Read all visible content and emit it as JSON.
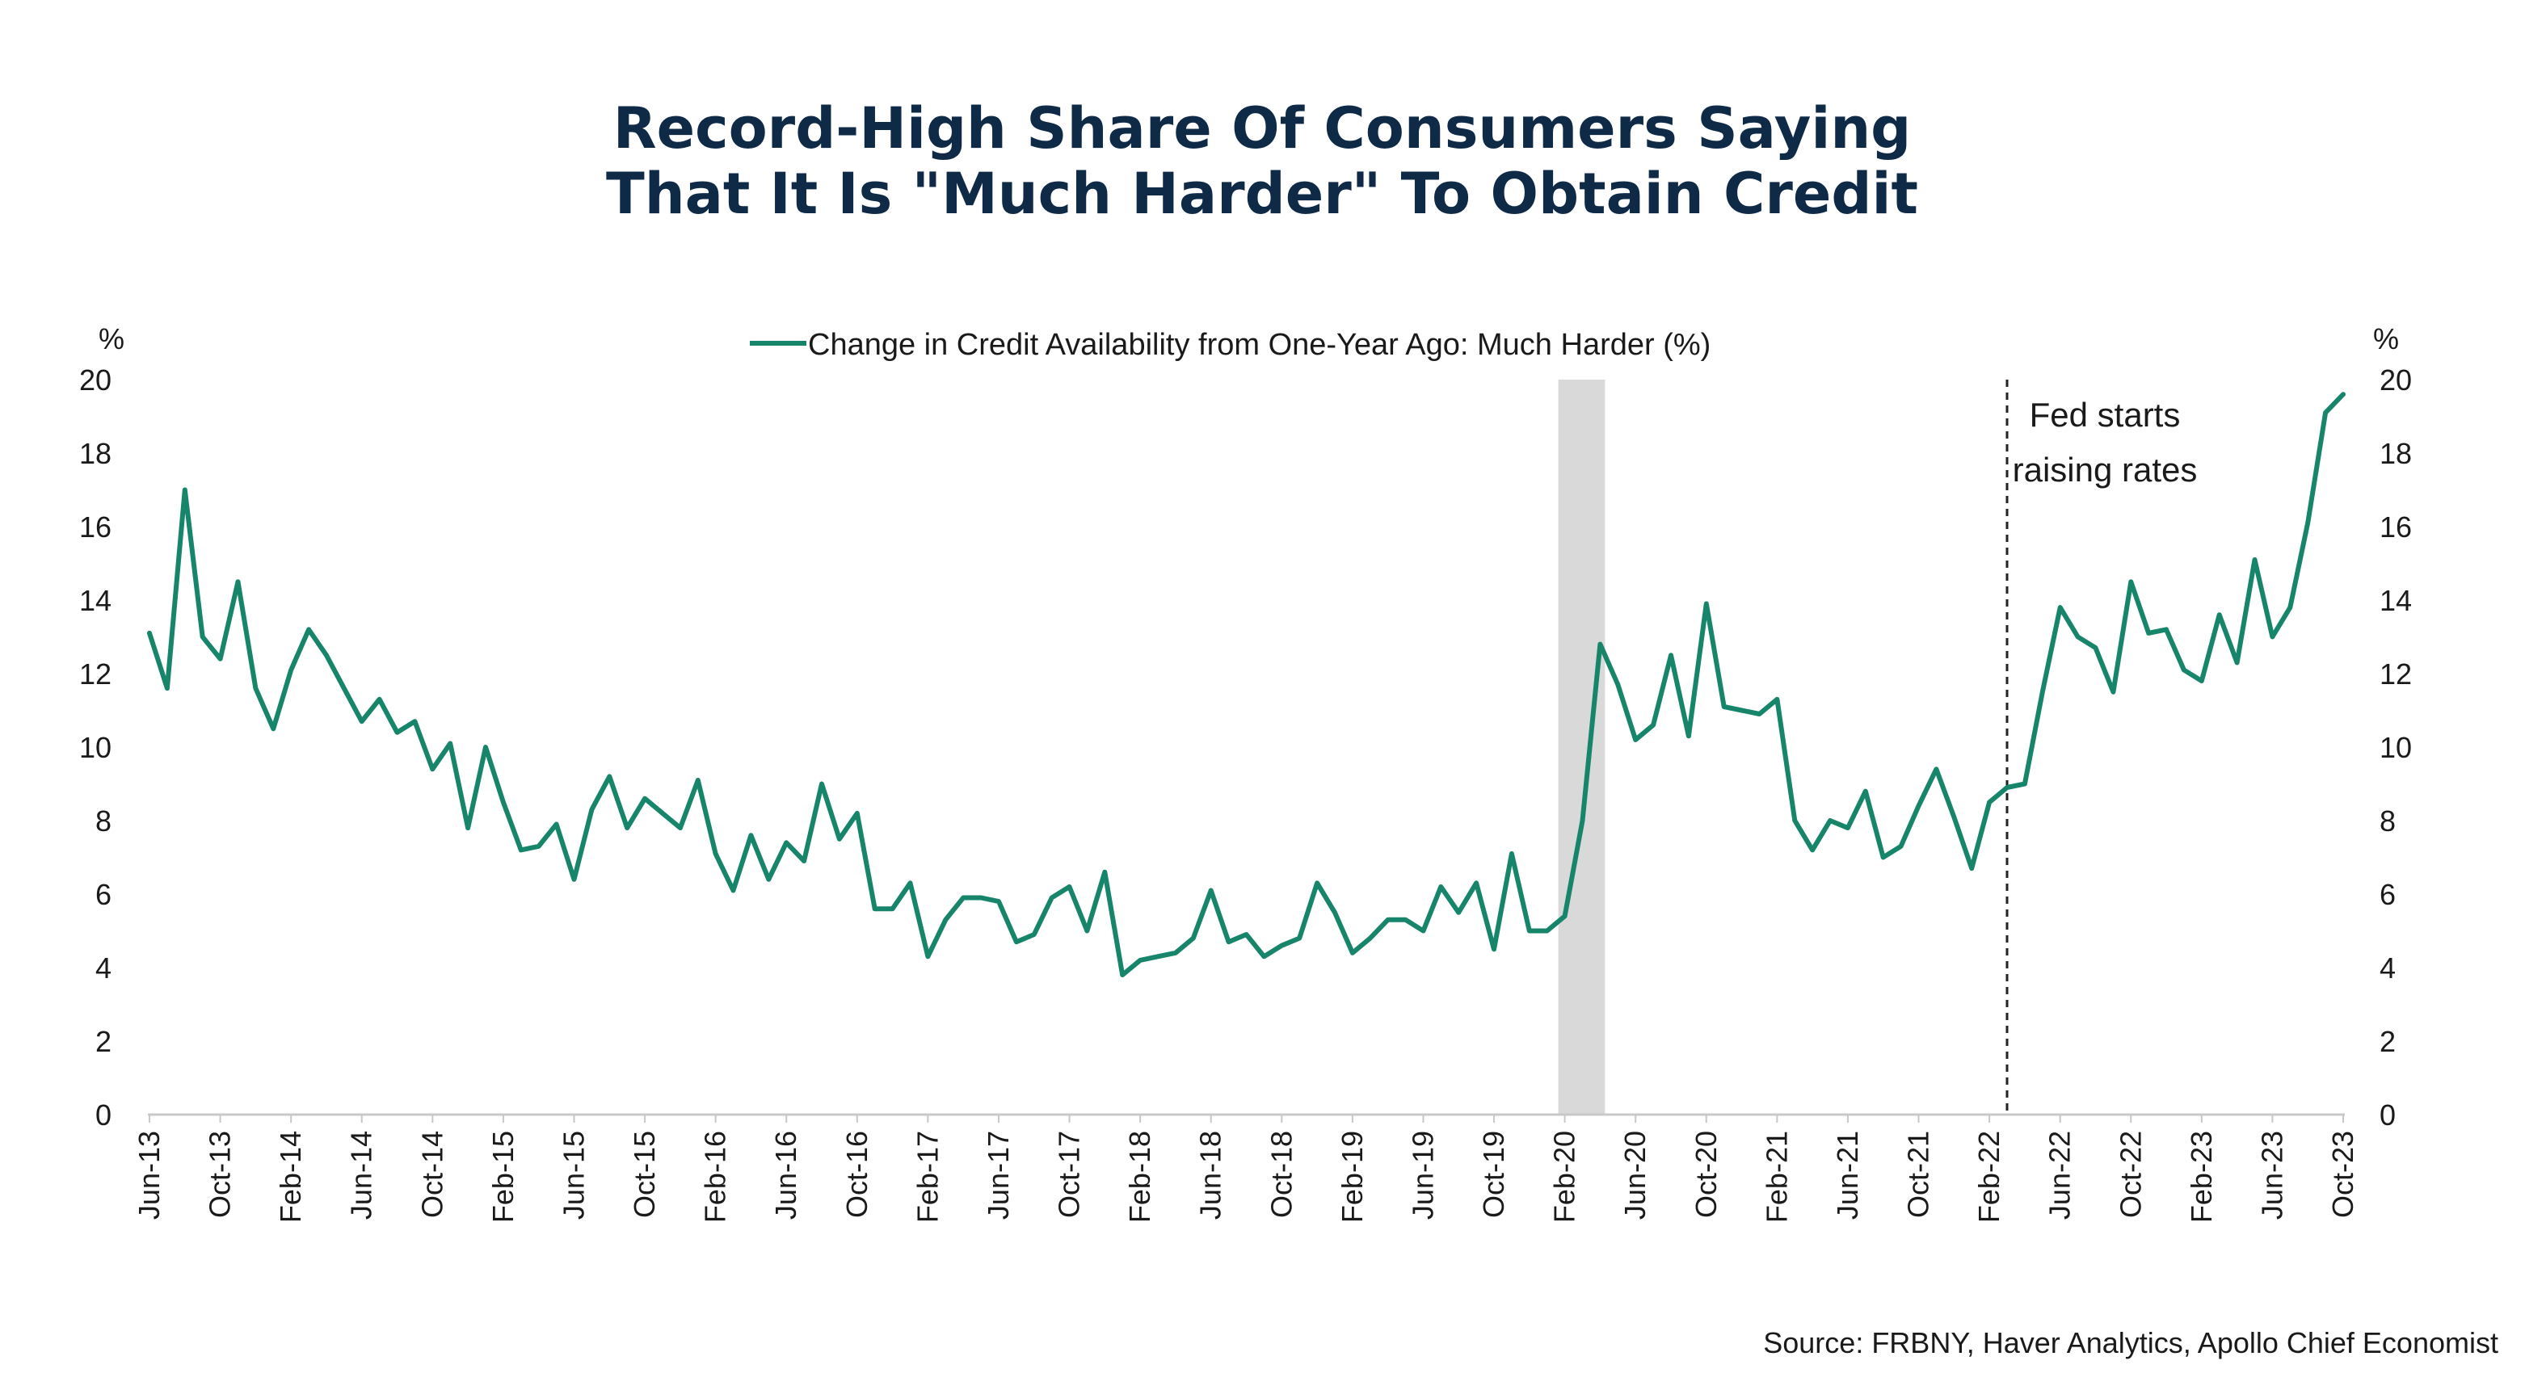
{
  "chart_data": {
    "type": "line",
    "title_lines": [
      "Record-High Share Of Consumers Saying",
      "That It Is \"Much Harder\" To Obtain Credit"
    ],
    "legend": "Change in Credit Availability from One-Year Ago: Much Harder (%)",
    "left_unit": "%",
    "right_unit": "%",
    "ylim": [
      0,
      20
    ],
    "yticks": [
      0,
      2,
      4,
      6,
      8,
      10,
      12,
      14,
      16,
      18,
      20
    ],
    "xtick_labels": [
      "Jun-13",
      "Oct-13",
      "Feb-14",
      "Jun-14",
      "Oct-14",
      "Feb-15",
      "Jun-15",
      "Oct-15",
      "Feb-16",
      "Jun-16",
      "Oct-16",
      "Feb-17",
      "Jun-17",
      "Oct-17",
      "Feb-18",
      "Jun-18",
      "Oct-18",
      "Feb-19",
      "Jun-19",
      "Oct-19",
      "Feb-20",
      "Jun-20",
      "Oct-20",
      "Feb-21",
      "Jun-21",
      "Oct-21",
      "Feb-22",
      "Jun-22",
      "Oct-22",
      "Feb-23",
      "Jun-23",
      "Oct-23"
    ],
    "recession_band": [
      "Feb-20",
      "Apr-20"
    ],
    "annotation": {
      "text_lines": [
        "Fed starts",
        "raising rates"
      ],
      "at": "Mar-22"
    },
    "source": "Source: FRBNY, Haver Analytics, Apollo Chief Economist",
    "line_color": "#17856a",
    "series": [
      {
        "start": "Jun-13",
        "values": [
          13.1,
          11.6,
          17.0,
          13.0,
          12.4,
          14.5,
          11.6,
          10.5,
          12.1,
          13.2,
          12.5,
          11.6,
          10.7,
          11.3,
          10.4,
          10.7,
          9.4,
          10.1,
          7.8,
          10.0,
          8.5,
          7.2,
          7.3,
          7.9,
          6.4,
          8.3,
          9.2,
          7.8,
          8.6,
          8.2,
          7.8,
          9.1,
          7.1,
          6.1,
          7.6,
          6.4,
          7.4,
          6.9,
          9.0,
          7.5,
          8.2,
          5.6,
          5.6,
          6.3,
          4.3,
          5.3,
          5.9,
          5.9,
          5.8,
          4.7,
          4.9,
          5.9,
          6.2,
          5.0,
          6.6,
          3.8,
          4.2,
          4.3,
          4.4,
          4.8,
          6.1,
          4.7,
          4.9,
          4.3,
          4.6,
          4.8,
          6.3,
          5.5,
          4.4,
          4.8,
          5.3,
          5.3,
          5.0,
          6.2,
          5.5,
          6.3,
          4.5,
          7.1,
          5.0,
          5.0,
          5.4,
          8.0,
          12.8,
          11.7,
          10.2,
          10.6,
          12.5,
          10.3,
          13.9,
          11.1,
          11.0,
          10.9,
          11.3,
          8.0,
          7.2,
          8.0,
          7.8,
          8.8,
          7.0,
          7.3,
          8.4,
          9.4,
          8.1,
          6.7,
          8.5,
          8.9,
          9.0,
          11.5,
          13.8,
          13.0,
          12.7,
          11.5,
          14.5,
          13.1,
          13.2,
          12.1,
          11.8,
          13.6,
          12.3,
          15.1,
          13.0,
          13.8,
          16.1,
          19.1,
          19.6
        ]
      }
    ]
  }
}
